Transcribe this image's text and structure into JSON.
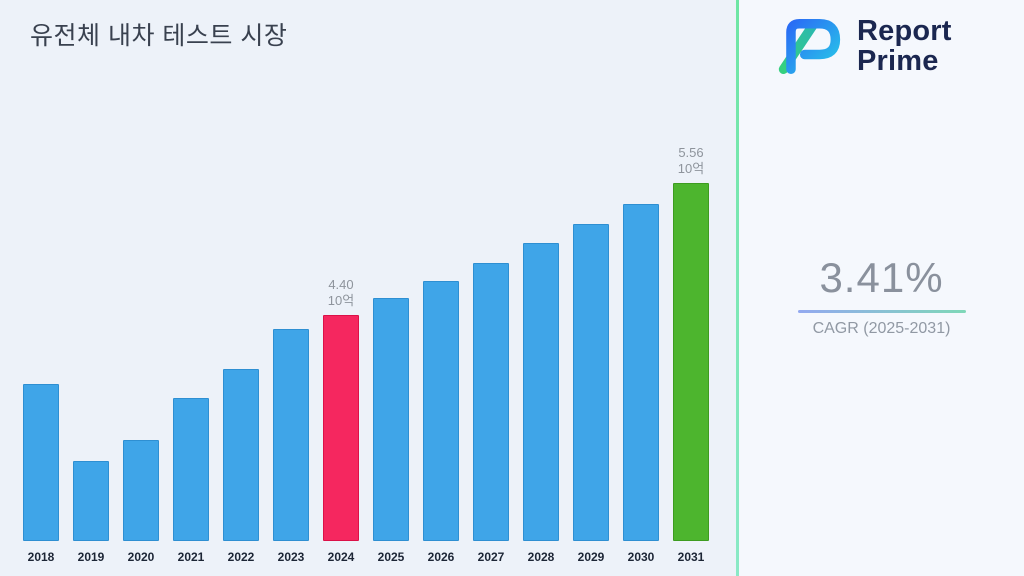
{
  "title": "유전체 내차 테스트 시장",
  "logo": {
    "line1": "Report",
    "line2": "Prime"
  },
  "cagr": {
    "value": "3.41%",
    "label": "CAGR (2025-2031)"
  },
  "chart_data": {
    "type": "bar",
    "title": "유전체 내차 테스트 시장",
    "xlabel": "",
    "ylabel": "",
    "unit": "10억",
    "categories": [
      "2018",
      "2019",
      "2020",
      "2021",
      "2022",
      "2023",
      "2024",
      "2025",
      "2026",
      "2027",
      "2028",
      "2029",
      "2030",
      "2031"
    ],
    "values": [
      3.8,
      3.12,
      3.31,
      3.67,
      3.93,
      4.28,
      4.4,
      4.55,
      4.7,
      4.86,
      5.03,
      5.2,
      5.38,
      5.56
    ],
    "ylim": [
      2.42,
      5.9
    ],
    "grid": false,
    "legend": "none",
    "annotations": [
      {
        "year": "2024",
        "lines": [
          "4.40",
          "10억"
        ]
      },
      {
        "year": "2031",
        "lines": [
          "5.56",
          "10억"
        ]
      }
    ],
    "style": {
      "bar_fill": "#3FA5E8",
      "bar_edge": "#2E8FD2",
      "annotation_color": "#8e949c",
      "highlights": {
        "2024": {
          "fill": "#F5275F",
          "edge": "#DB1148"
        },
        "2031": {
          "fill": "#4DB52E",
          "edge": "#3D9C20"
        }
      }
    }
  },
  "brand_colors": {
    "logo_text": "#1b2750",
    "logo_gradient_blue_start": "#2a6df5",
    "logo_gradient_blue_end": "#28c8e8",
    "logo_gradient_green_start": "#35d07f",
    "logo_gradient_green_end": "#2bb8b0",
    "divider_green": "#6ee6a4",
    "cagr_underline_start": "#93a9f0",
    "cagr_underline_end": "#7fd8b8"
  }
}
